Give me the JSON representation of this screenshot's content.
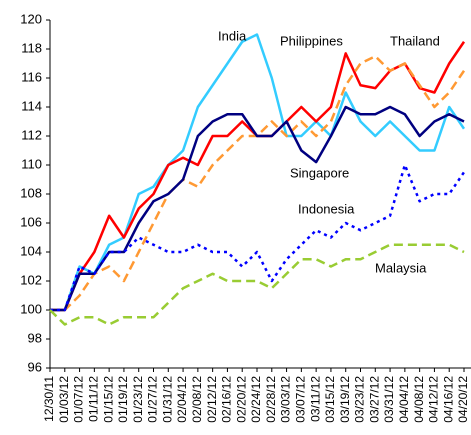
{
  "chart_data": {
    "type": "line",
    "categories": [
      "12/30/11",
      "01/03/12",
      "01/07/12",
      "01/11/12",
      "01/15/12",
      "01/19/12",
      "01/23/12",
      "01/27/12",
      "01/31/12",
      "02/04/12",
      "02/08/12",
      "02/12/12",
      "02/16/12",
      "02/20/12",
      "02/24/12",
      "02/28/12",
      "03/03/12",
      "03/07/12",
      "03/11/12",
      "03/15/12",
      "03/19/12",
      "03/23/12",
      "03/27/12",
      "03/31/12",
      "04/04/12",
      "04/08/12",
      "04/12/12",
      "04/16/12",
      "04/20/12"
    ],
    "ylim": [
      96,
      120
    ],
    "yticks": [
      96,
      98,
      100,
      102,
      104,
      106,
      108,
      110,
      112,
      114,
      116,
      118,
      120
    ],
    "series": [
      {
        "name": "India",
        "color": "#33ccff",
        "dash": "solid",
        "values": [
          100,
          100,
          103,
          102.5,
          104.5,
          105,
          108,
          108.5,
          110,
          111,
          114,
          115.5,
          117,
          118.5,
          119,
          116,
          112,
          112,
          113,
          112,
          115,
          113,
          112,
          113,
          112,
          111,
          111,
          114,
          112.5
        ]
      },
      {
        "name": "Philippines",
        "color": "#ff0000",
        "dash": "solid",
        "values": [
          100,
          100,
          102.5,
          104,
          106.5,
          105,
          107,
          108,
          110,
          110.5,
          110,
          112,
          112,
          113,
          112,
          112,
          113,
          114,
          113,
          114,
          117.7,
          115.5,
          115.3,
          116.5,
          117,
          115.3,
          115,
          117,
          118.5
        ]
      },
      {
        "name": "Thailand",
        "color": "#ff9933",
        "dash": "dashed",
        "values": [
          100,
          100,
          101,
          102.5,
          103,
          102,
          104,
          106,
          108,
          109,
          108.5,
          110,
          111,
          112,
          112,
          113,
          112,
          113,
          112,
          113,
          115.5,
          117,
          117.5,
          116.5,
          117,
          115.5,
          114,
          115,
          116.5
        ]
      },
      {
        "name": "Singapore",
        "color": "#000080",
        "dash": "solid",
        "values": [
          100,
          100,
          102.5,
          102.5,
          104,
          104,
          106,
          107.5,
          108,
          109,
          112,
          113,
          113.5,
          113.5,
          112,
          112,
          113,
          111,
          110.2,
          112,
          114,
          113.5,
          113.5,
          114,
          113.5,
          112,
          113,
          113.5,
          113
        ]
      },
      {
        "name": "Indonesia",
        "color": "#0000ff",
        "dash": "dotted",
        "values": [
          100,
          100,
          103,
          102.5,
          104,
          104,
          105,
          104.5,
          104,
          104,
          104.5,
          104,
          104,
          103,
          104,
          102,
          103.5,
          104.5,
          105.5,
          105,
          106,
          105.5,
          106,
          106.5,
          110,
          107.5,
          108,
          108,
          109.5
        ]
      },
      {
        "name": "Malaysia",
        "color": "#99cc33",
        "dash": "dashed",
        "values": [
          100,
          99,
          99.5,
          99.5,
          99,
          99.5,
          99.5,
          99.5,
          100.5,
          101.5,
          102,
          102.5,
          102,
          102,
          102,
          101.5,
          102.5,
          103.5,
          103.5,
          103,
          103.5,
          103.5,
          104,
          104.5,
          104.5,
          104.5,
          104.5,
          104.5,
          104
        ]
      }
    ]
  }
}
